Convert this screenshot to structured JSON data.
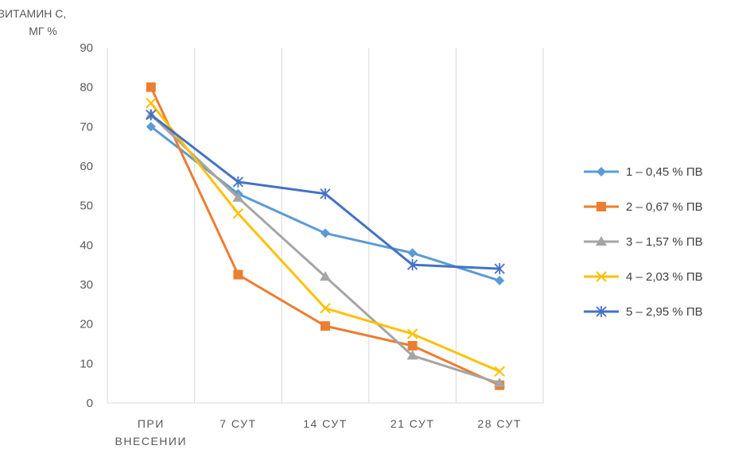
{
  "chart_data": {
    "type": "line",
    "ylabel": [
      "ВИТАМИН С,",
      "МГ %"
    ],
    "ylim": [
      0,
      90
    ],
    "ytick_step": 10,
    "categories": [
      [
        "ПРИ",
        "ВНЕСЕНИИ"
      ],
      [
        "7 СУТ"
      ],
      [
        "14 СУТ"
      ],
      [
        "21 СУТ"
      ],
      [
        "28 СУТ"
      ]
    ],
    "grid": "vertical",
    "legend_position": "right",
    "series": [
      {
        "name": "1 – 0,45 % ПВ",
        "values": [
          70,
          53,
          43,
          38,
          31
        ],
        "color": "#5b9bd5",
        "marker": "diamond"
      },
      {
        "name": "2 – 0,67 % ПВ",
        "values": [
          80,
          32.5,
          19.5,
          14.5,
          4.5
        ],
        "color": "#ed7d31",
        "marker": "square"
      },
      {
        "name": "3 – 1,57 % ПВ",
        "values": [
          73,
          52,
          32,
          12,
          5
        ],
        "color": "#a5a5a5",
        "marker": "triangle"
      },
      {
        "name": "4 – 2,03 % ПВ",
        "values": [
          76,
          48,
          24,
          17.5,
          8
        ],
        "color": "#ffc000",
        "marker": "x"
      },
      {
        "name": "5 – 2,95 % ПВ",
        "values": [
          73,
          56,
          53,
          35,
          34
        ],
        "color": "#4472c4",
        "marker": "star"
      }
    ]
  }
}
